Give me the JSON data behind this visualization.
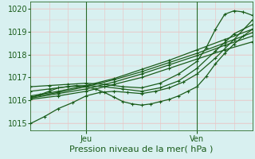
{
  "bg_color": "#cceedd",
  "plot_bg_color": "#d8f0f0",
  "grid_color": "#e8c8c8",
  "line_color": "#1a5c1a",
  "marker_color": "#1a5c1a",
  "ylim": [
    1014.7,
    1020.3
  ],
  "xlim": [
    0,
    48
  ],
  "yticks": [
    1015,
    1016,
    1017,
    1018,
    1019,
    1020
  ],
  "xlabel": "Pression niveau de la mer( hPa )",
  "xlabel_fontsize": 8,
  "tick_fontsize": 7,
  "vline_positions": [
    12,
    36
  ],
  "vline_labels": [
    "Jeu",
    "Ven"
  ],
  "vline_color": "#2a6b2a",
  "lines": [
    {
      "x": [
        0,
        6,
        12,
        18,
        24,
        30,
        36,
        42,
        48
      ],
      "y": [
        1016.05,
        1016.2,
        1016.4,
        1016.7,
        1017.0,
        1017.4,
        1017.8,
        1018.2,
        1018.55
      ],
      "marker": "+",
      "markersize": 3.5,
      "lw": 0.9
    },
    {
      "x": [
        0,
        6,
        12,
        18,
        24,
        30,
        36,
        42,
        48
      ],
      "y": [
        1016.1,
        1016.3,
        1016.5,
        1016.8,
        1017.15,
        1017.55,
        1017.95,
        1018.4,
        1018.8
      ],
      "marker": "+",
      "markersize": 3.5,
      "lw": 0.9
    },
    {
      "x": [
        0,
        6,
        12,
        18,
        24,
        30,
        36,
        42,
        48
      ],
      "y": [
        1016.15,
        1016.35,
        1016.6,
        1016.9,
        1017.25,
        1017.65,
        1018.05,
        1018.5,
        1018.95
      ],
      "marker": "+",
      "markersize": 3.5,
      "lw": 0.9
    },
    {
      "x": [
        0,
        6,
        12,
        18,
        24,
        30,
        36,
        42,
        48
      ],
      "y": [
        1016.2,
        1016.4,
        1016.65,
        1016.95,
        1017.35,
        1017.75,
        1018.2,
        1018.65,
        1019.1
      ],
      "marker": "+",
      "markersize": 3.5,
      "lw": 0.9
    },
    {
      "x": [
        0,
        2,
        4,
        6,
        8,
        10,
        12,
        14,
        16,
        18,
        20,
        22,
        24,
        26,
        28,
        30,
        32,
        34,
        36,
        38,
        40,
        42,
        44,
        46,
        48
      ],
      "y": [
        1016.1,
        1016.25,
        1016.4,
        1016.55,
        1016.6,
        1016.65,
        1016.6,
        1016.5,
        1016.35,
        1016.15,
        1015.95,
        1015.85,
        1015.8,
        1015.85,
        1015.95,
        1016.05,
        1016.2,
        1016.4,
        1016.6,
        1017.05,
        1017.6,
        1018.05,
        1018.45,
        1018.8,
        1019.1
      ],
      "marker": "+",
      "markersize": 3.5,
      "lw": 0.9
    },
    {
      "x": [
        0,
        3,
        6,
        9,
        12,
        15,
        18,
        21,
        24,
        27,
        30,
        33,
        36,
        40,
        44,
        48
      ],
      "y": [
        1015.0,
        1015.3,
        1015.65,
        1015.9,
        1016.2,
        1016.35,
        1016.4,
        1016.35,
        1016.3,
        1016.4,
        1016.55,
        1016.8,
        1017.15,
        1017.85,
        1018.65,
        1019.5
      ],
      "marker": "+",
      "markersize": 3.5,
      "lw": 0.9
    },
    {
      "x": [
        0,
        4,
        8,
        12,
        16,
        20,
        24,
        28,
        32,
        36,
        38,
        40,
        42,
        44,
        46,
        48
      ],
      "y": [
        1016.6,
        1016.65,
        1016.7,
        1016.75,
        1016.7,
        1016.6,
        1016.55,
        1016.75,
        1017.15,
        1017.7,
        1018.3,
        1019.1,
        1019.75,
        1019.9,
        1019.85,
        1019.7
      ],
      "marker": "+",
      "markersize": 3.5,
      "lw": 0.9
    },
    {
      "x": [
        0,
        4,
        8,
        12,
        16,
        20,
        24,
        28,
        32,
        36,
        40,
        44,
        48
      ],
      "y": [
        1016.4,
        1016.5,
        1016.6,
        1016.65,
        1016.6,
        1016.5,
        1016.4,
        1016.55,
        1016.85,
        1017.4,
        1018.15,
        1018.9,
        1019.3
      ],
      "marker": "+",
      "markersize": 3.5,
      "lw": 0.9
    }
  ]
}
